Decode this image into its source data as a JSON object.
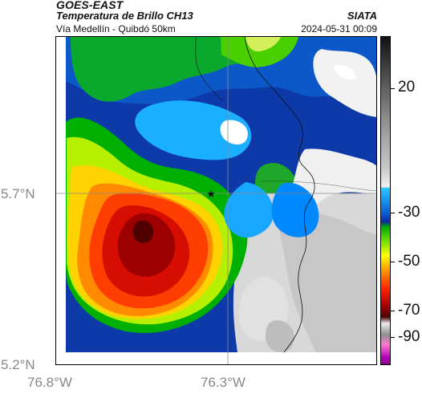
{
  "header": {
    "title": "GOES-EAST",
    "subtitle": "Temperatura de Brillo CH13",
    "source": "SIATA",
    "route": "Vía Medellín - Quibdó 50km",
    "datetime": "2024-05-31 00:09"
  },
  "map": {
    "y_labels": [
      "5.7°N",
      "5.2°N"
    ],
    "x_labels": [
      "76.8°W",
      "76.3°W"
    ],
    "marker": "★"
  },
  "colorbar": {
    "labels": [
      "20",
      "-30",
      "-50",
      "-70",
      "-90"
    ],
    "colors": {
      "very_cold": "#111111",
      "cold_gray": "#8d8d8d",
      "light_gray": "#f0f0f0",
      "cyan": "#28c8ff",
      "blue": "#0a5bd6",
      "green": "#00aa00",
      "yellow": "#ffff00",
      "orange": "#ff8800",
      "red": "#ff2200",
      "dark_red": "#4a0000",
      "magenta": "#ff77d3",
      "purple": "#8d008f"
    }
  }
}
